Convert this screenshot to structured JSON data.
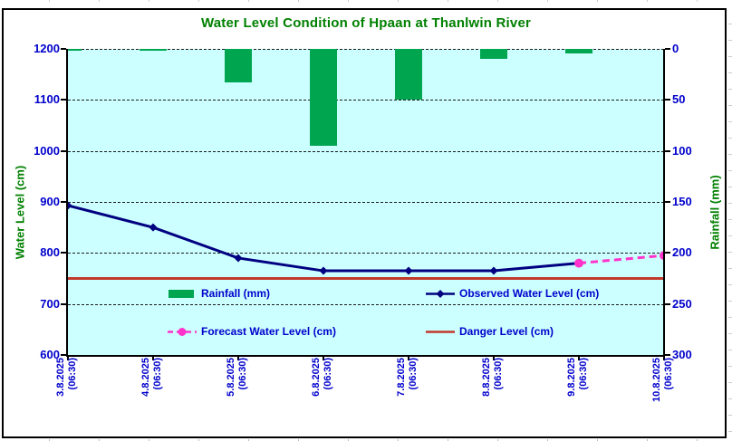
{
  "title": "Water Level Condition of Hpaan at Thanlwin River",
  "chart_data": {
    "type": "combo (bar + line)",
    "categories": [
      {
        "date": "3.8.2025",
        "time": "(06:30)"
      },
      {
        "date": "4.8.2025",
        "time": "(06:30)"
      },
      {
        "date": "5.8.2025",
        "time": "(06:30)"
      },
      {
        "date": "6.8.2025",
        "time": "(06:30)"
      },
      {
        "date": "7.8.2025",
        "time": "(06:30)"
      },
      {
        "date": "8.8.2025",
        "time": "(06:30)"
      },
      {
        "date": "9.8.2025",
        "time": "(06:30)"
      },
      {
        "date": "10.8.2025",
        "time": "(06:30)"
      }
    ],
    "left_axis": {
      "title": "Water Level (cm)",
      "min": 600,
      "max": 1200,
      "ticks": [
        "1200",
        "1100",
        "1000",
        "900",
        "800",
        "700",
        "600"
      ]
    },
    "right_axis": {
      "title": "Rainfall (mm)",
      "min": 0,
      "max": 300,
      "direction": "downward-from-top",
      "ticks": [
        "0",
        "50",
        "100",
        "150",
        "200",
        "250",
        "300"
      ]
    },
    "grid": "horizontal dashed",
    "legend_position": "inside lower half, two rows",
    "series": {
      "rainfall": {
        "name": "Rainfall (mm)",
        "type": "bar",
        "axis": "right",
        "values": [
          2,
          2,
          33,
          95,
          50,
          10,
          4,
          0
        ]
      },
      "observed": {
        "name": "Observed Water Level (cm)",
        "type": "line",
        "marker": "diamond",
        "axis": "left",
        "values": [
          893,
          850,
          790,
          765,
          765,
          765,
          780,
          null
        ]
      },
      "forecast": {
        "name": "Forecast Water Level (cm)",
        "type": "dashed-line",
        "marker": "circle",
        "axis": "left",
        "values": [
          null,
          null,
          null,
          null,
          null,
          null,
          780,
          795
        ]
      },
      "danger": {
        "name": "Danger Level (cm)",
        "type": "horizontal-line",
        "axis": "left",
        "value": 750
      }
    }
  },
  "legend": [
    {
      "key": "rainfall",
      "label": "Rainfall (mm)",
      "swatch": "bar"
    },
    {
      "key": "observed",
      "label": "Observed Water Level (cm)",
      "swatch": "line-diamond"
    },
    {
      "key": "forecast",
      "label": "Forecast Water Level (cm)",
      "swatch": "dashed-circle"
    },
    {
      "key": "danger",
      "label": "Danger Level (cm)",
      "swatch": "line"
    }
  ],
  "colors": {
    "plot_bg": "#CCFFFF",
    "bar": "#00A550",
    "observed": "#000080",
    "forecast": "#FF33CC",
    "danger": "#C0392B",
    "tick_text": "#0000CC",
    "axis_title": "#008000",
    "title": "#008000",
    "legend_text": "#0000CC",
    "gridline": "#1a1a1a"
  }
}
